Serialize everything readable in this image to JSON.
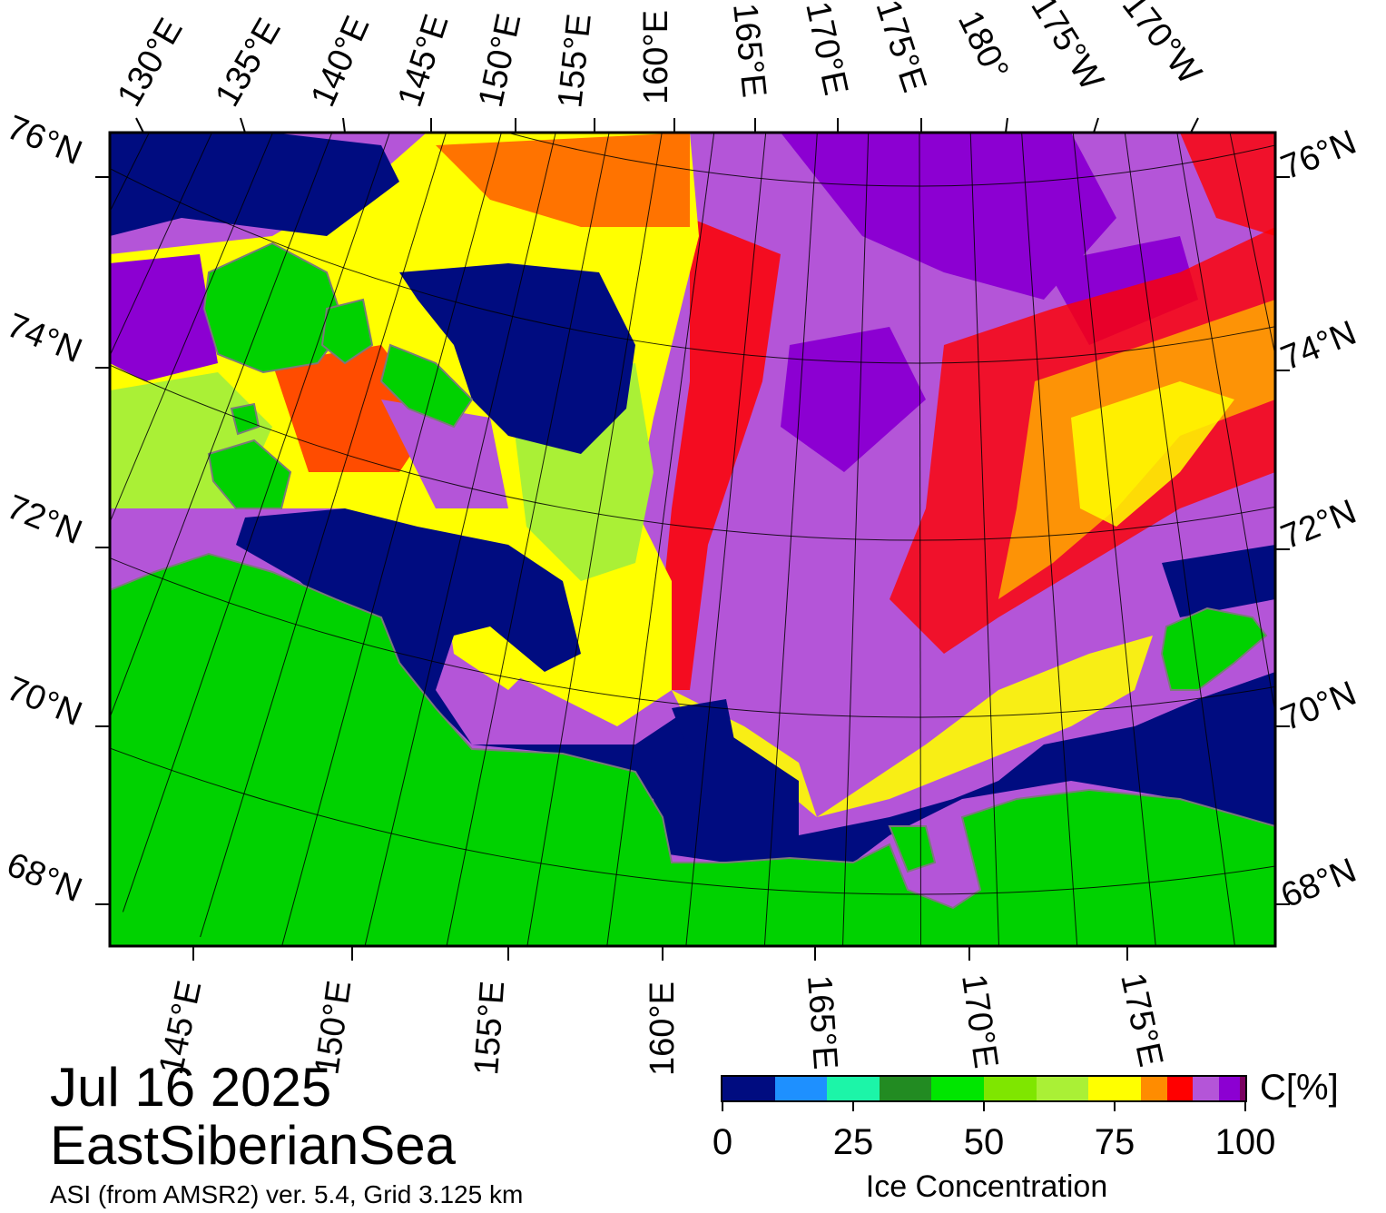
{
  "date": "Jul 16 2025",
  "region": "EastSiberianSea",
  "product": "ASI (from AMSR2) ver. 5.4,  Grid 3.125 km",
  "legend": {
    "title": "Ice Concentration",
    "unit": "C[%]",
    "ticks": [
      "0",
      "25",
      "50",
      "75",
      "100"
    ],
    "colors": [
      "#000c80",
      "#1e90ff",
      "#1cf5a8",
      "#228b22",
      "#00e600",
      "#7fe600",
      "#aaf036",
      "#ffff00",
      "#ff8c00",
      "#ff0000",
      "#b455d8",
      "#8c00d2",
      "#7a0060"
    ],
    "segment_bounds": [
      0,
      10,
      20,
      30,
      40,
      50,
      60,
      70,
      80,
      85,
      90,
      95,
      99,
      100
    ]
  },
  "map": {
    "top_lon_labels": [
      "130°E",
      "135°E",
      "140°E",
      "145°E",
      "150°E",
      "155°E",
      "160°E",
      "165°E",
      "170°E",
      "175°E",
      "180°",
      "175°W",
      "170°W"
    ],
    "bottom_lon_labels": [
      "145°E",
      "150°E",
      "155°E",
      "160°E",
      "165°E",
      "170°E",
      "175°E"
    ],
    "lat_labels": [
      "76°N",
      "74°N",
      "72°N",
      "70°N",
      "68°N"
    ],
    "colors": {
      "land": "#00d200",
      "land_outline": "#7a7a7a",
      "open_water": "#000c80",
      "frame": "#000000"
    }
  }
}
